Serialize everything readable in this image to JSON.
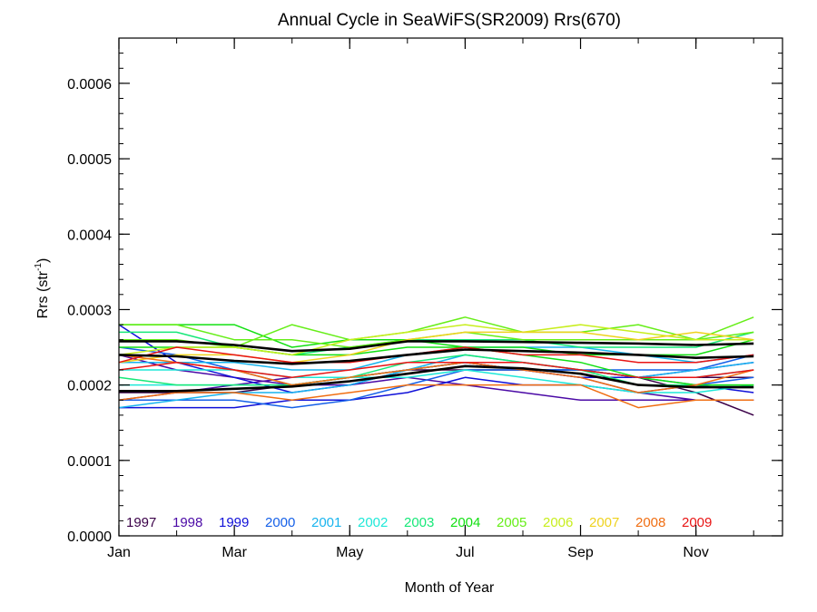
{
  "chart_data": {
    "type": "line",
    "title": "Annual Cycle in SeaWiFS(SR2009) Rrs(670)",
    "xlabel": "Month of Year",
    "ylabel_main": "Rrs (str",
    "ylabel_sup": "-1",
    "ylabel_tail": ")",
    "xlim": [
      1,
      12.5
    ],
    "ylim": [
      0,
      0.00066
    ],
    "x_ticks": [
      {
        "value": 1,
        "label": "Jan"
      },
      {
        "value": 3,
        "label": "Mar"
      },
      {
        "value": 5,
        "label": "May"
      },
      {
        "value": 7,
        "label": "Jul"
      },
      {
        "value": 9,
        "label": "Sep"
      },
      {
        "value": 11,
        "label": "Nov"
      }
    ],
    "y_ticks": [
      {
        "value": 0,
        "label": "0.0000"
      },
      {
        "value": 0.0001,
        "label": "0.0001"
      },
      {
        "value": 0.0002,
        "label": "0.0002"
      },
      {
        "value": 0.0003,
        "label": "0.0003"
      },
      {
        "value": 0.0004,
        "label": "0.0004"
      },
      {
        "value": 0.0005,
        "label": "0.0005"
      },
      {
        "value": 0.0006,
        "label": "0.0006"
      }
    ],
    "x": [
      1,
      2,
      3,
      4,
      5,
      6,
      7,
      8,
      9,
      10,
      11,
      12
    ],
    "legend_placement": "bottom",
    "series": [
      {
        "name": "1997",
        "color": "#3a0048",
        "values": [
          null,
          null,
          null,
          null,
          null,
          null,
          null,
          null,
          0.00022,
          0.00021,
          0.00019,
          0.00016
        ]
      },
      {
        "name": "1997",
        "color": "#3a0048",
        "values": [
          0.00019,
          0.00019,
          0.00019,
          0.0002,
          0.00021,
          0.00022,
          0.00022,
          0.00022,
          0.00022,
          0.00021,
          0.00021,
          0.00021
        ]
      },
      {
        "name": "1998",
        "color": "#4b0aa6",
        "values": [
          0.00024,
          0.00022,
          0.00021,
          0.0002,
          0.0002,
          0.00021,
          0.0002,
          0.00019,
          0.00018,
          0.00018,
          0.00018,
          0.00018
        ]
      },
      {
        "name": "1998",
        "color": "#4b0aa6",
        "values": [
          0.00018,
          0.00019,
          0.0002,
          0.00021,
          0.00021,
          0.00022,
          0.00023,
          0.00022,
          0.00021,
          0.00019,
          0.00018,
          0.00018
        ]
      },
      {
        "name": "1999",
        "color": "#1010d8",
        "values": [
          0.00028,
          0.00023,
          0.00021,
          0.00019,
          0.0002,
          0.00022,
          0.00023,
          0.00022,
          0.00021,
          0.00021,
          0.00022,
          0.00023
        ]
      },
      {
        "name": "1999",
        "color": "#1010d8",
        "values": [
          0.00017,
          0.00017,
          0.00017,
          0.00018,
          0.00018,
          0.00019,
          0.00021,
          0.0002,
          0.0002,
          0.00019,
          0.0002,
          0.00019
        ]
      },
      {
        "name": "2000",
        "color": "#1560e8",
        "values": [
          0.00025,
          0.00024,
          0.00022,
          0.0002,
          0.00021,
          0.00022,
          0.00023,
          0.00022,
          0.00022,
          0.00021,
          0.0002,
          0.00021
        ]
      },
      {
        "name": "2000",
        "color": "#1560e8",
        "values": [
          0.00018,
          0.00018,
          0.00018,
          0.00017,
          0.00018,
          0.0002,
          0.00022,
          0.00022,
          0.00022,
          0.00022,
          0.00022,
          0.00024
        ]
      },
      {
        "name": "2001",
        "color": "#18b4ee",
        "values": [
          0.00017,
          0.00018,
          0.00019,
          0.00019,
          0.0002,
          0.00022,
          0.00024,
          0.00023,
          0.00022,
          0.00021,
          0.00022,
          0.00023
        ]
      },
      {
        "name": "2001",
        "color": "#18b4ee",
        "values": [
          0.00023,
          0.00023,
          0.00023,
          0.00022,
          0.00022,
          0.00024,
          0.00025,
          0.00025,
          0.00025,
          0.00024,
          0.00023,
          0.00024
        ]
      },
      {
        "name": "2002",
        "color": "#1ee8d8",
        "values": [
          0.00022,
          0.00022,
          0.00022,
          0.00021,
          0.00021,
          0.00022,
          0.00023,
          0.00023,
          0.00022,
          0.00021,
          0.00021,
          0.00022
        ]
      },
      {
        "name": "2002",
        "color": "#1ee8d8",
        "values": [
          0.0002,
          0.0002,
          0.0002,
          0.0002,
          0.00021,
          0.00021,
          0.00022,
          0.00021,
          0.0002,
          0.00019,
          0.00019,
          0.0002
        ]
      },
      {
        "name": "2003",
        "color": "#16e878",
        "values": [
          0.00021,
          0.0002,
          0.0002,
          0.0002,
          0.00021,
          0.00023,
          0.00024,
          0.00023,
          0.00022,
          0.0002,
          0.0002,
          0.0002
        ]
      },
      {
        "name": "2003",
        "color": "#16e878",
        "values": [
          0.00027,
          0.00027,
          0.00025,
          0.00024,
          0.00025,
          0.00026,
          0.00026,
          0.00026,
          0.00025,
          0.00025,
          0.00025,
          0.00027
        ]
      },
      {
        "name": "2004",
        "color": "#12e012",
        "values": [
          0.00028,
          0.00028,
          0.00028,
          0.00025,
          0.00026,
          0.00026,
          0.00025,
          0.00024,
          0.00023,
          0.00021,
          0.0002,
          0.0002
        ]
      },
      {
        "name": "2004",
        "color": "#12e012",
        "values": [
          0.00025,
          0.00025,
          0.00025,
          0.00024,
          0.00024,
          0.00025,
          0.00025,
          0.00025,
          0.00024,
          0.00024,
          0.00024,
          0.00026
        ]
      },
      {
        "name": "2005",
        "color": "#66ee18",
        "values": [
          0.00026,
          0.00026,
          0.00025,
          0.00028,
          0.00026,
          0.00027,
          0.00029,
          0.00027,
          0.00027,
          0.00028,
          0.00026,
          0.00029
        ]
      },
      {
        "name": "2005",
        "color": "#66ee18",
        "values": [
          0.00028,
          0.00028,
          0.00026,
          0.00026,
          0.00025,
          0.00026,
          0.00027,
          0.00026,
          0.00026,
          0.00026,
          0.00026,
          0.00027
        ]
      },
      {
        "name": "2006",
        "color": "#c8ee1e",
        "values": [
          0.00024,
          0.00025,
          0.00025,
          0.00024,
          0.00026,
          0.00027,
          0.00028,
          0.00027,
          0.00028,
          0.00027,
          0.00026,
          0.00026
        ]
      },
      {
        "name": "2007",
        "color": "#eed21e",
        "values": [
          0.00023,
          0.00024,
          0.00024,
          0.00023,
          0.00024,
          0.00026,
          0.00027,
          0.00027,
          0.00027,
          0.00026,
          0.00027,
          0.00026
        ]
      },
      {
        "name": "2008",
        "color": "#f06e12",
        "values": [
          0.00018,
          0.00019,
          0.00019,
          0.00018,
          0.00019,
          0.0002,
          0.0002,
          0.0002,
          0.0002,
          0.00017,
          0.00018,
          0.00018
        ]
      },
      {
        "name": "2008",
        "color": "#f06e12",
        "values": [
          0.00024,
          0.00023,
          0.00022,
          0.0002,
          0.00021,
          0.00022,
          0.00023,
          0.00022,
          0.00021,
          0.00019,
          0.0002,
          0.00022
        ]
      },
      {
        "name": "2009",
        "color": "#e81414",
        "values": [
          0.00022,
          0.00023,
          0.00022,
          0.00021,
          0.00022,
          0.00023,
          0.00023,
          0.00023,
          0.00022,
          0.00021,
          0.00021,
          0.00022
        ]
      },
      {
        "name": "2009",
        "color": "#e81414",
        "values": [
          0.00023,
          0.00025,
          0.00024,
          0.00023,
          0.00023,
          0.00024,
          0.00025,
          0.00024,
          0.00024,
          0.00023,
          0.00023,
          0.00024
        ]
      },
      {
        "name": "",
        "color": "#000000",
        "bold": true,
        "values": [
          0.000258,
          0.000258,
          0.000253,
          0.000245,
          0.000248,
          0.000258,
          0.000258,
          0.000257,
          0.000256,
          0.000255,
          0.000253,
          0.000255
        ]
      },
      {
        "name": "",
        "color": "#000000",
        "bold": true,
        "values": [
          0.00024,
          0.000238,
          0.000232,
          0.000228,
          0.000232,
          0.00024,
          0.000247,
          0.000245,
          0.000243,
          0.00024,
          0.000236,
          0.000238
        ]
      },
      {
        "name": "",
        "color": "#000000",
        "bold": true,
        "values": [
          0.000192,
          0.000192,
          0.000195,
          0.000198,
          0.000205,
          0.000215,
          0.000225,
          0.000222,
          0.000215,
          0.0002,
          0.000197,
          0.000197
        ]
      }
    ],
    "legend": [
      {
        "label": "1997",
        "color": "#3a0048"
      },
      {
        "label": "1998",
        "color": "#4b0aa6"
      },
      {
        "label": "1999",
        "color": "#1010d8"
      },
      {
        "label": "2000",
        "color": "#1560e8"
      },
      {
        "label": "2001",
        "color": "#18b4ee"
      },
      {
        "label": "2002",
        "color": "#1ee8d8"
      },
      {
        "label": "2003",
        "color": "#16e878"
      },
      {
        "label": "2004",
        "color": "#12e012"
      },
      {
        "label": "2005",
        "color": "#66ee18"
      },
      {
        "label": "2006",
        "color": "#c8ee1e"
      },
      {
        "label": "2007",
        "color": "#eed21e"
      },
      {
        "label": "2008",
        "color": "#f06e12"
      },
      {
        "label": "2009",
        "color": "#e81414"
      }
    ]
  }
}
